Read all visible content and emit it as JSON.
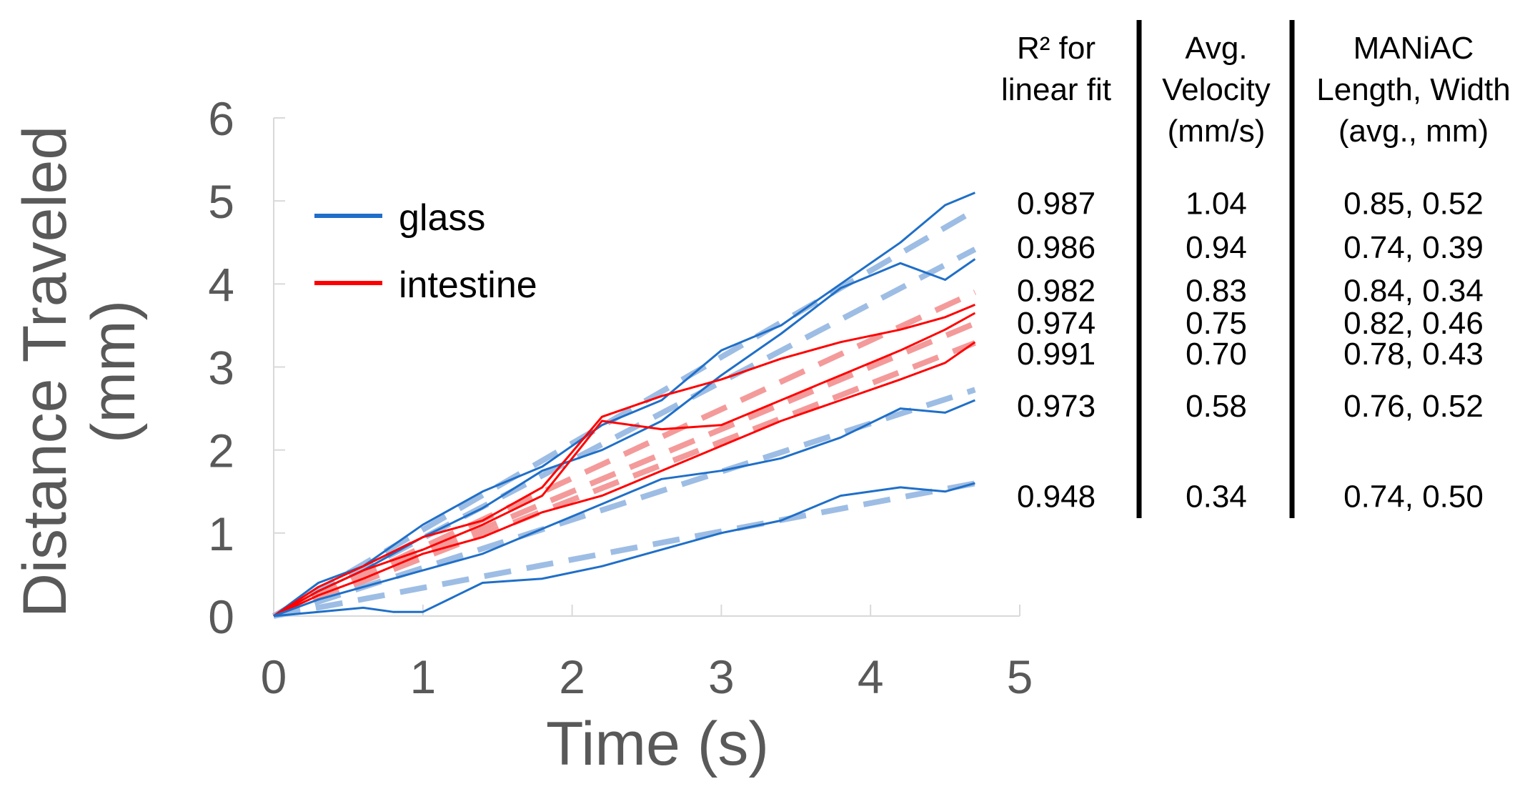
{
  "chart_data": {
    "type": "line",
    "title": "",
    "xlabel": "Time (s)",
    "ylabel_line1": "Distance Traveled",
    "ylabel_line2": "(mm)",
    "xlim": [
      0,
      5
    ],
    "ylim": [
      0,
      6
    ],
    "xticks": [
      0,
      1,
      2,
      3,
      4,
      5
    ],
    "yticks": [
      0,
      1,
      2,
      3,
      4,
      5,
      6
    ],
    "grid": false,
    "legend": {
      "position": "upper-left",
      "items": [
        {
          "label": "glass",
          "color": "#1f6fc8"
        },
        {
          "label": "intestine",
          "color": "#ff0000"
        }
      ]
    },
    "series": [
      {
        "name": "glass",
        "substrate": "glass",
        "velocity": 1.04,
        "r2": 0.987,
        "points": [
          [
            0,
            0
          ],
          [
            0.3,
            0.4
          ],
          [
            0.6,
            0.6
          ],
          [
            1.0,
            1.1
          ],
          [
            1.4,
            1.5
          ],
          [
            1.8,
            1.8
          ],
          [
            2.2,
            2.3
          ],
          [
            2.6,
            2.6
          ],
          [
            3.0,
            3.2
          ],
          [
            3.4,
            3.5
          ],
          [
            3.8,
            4.0
          ],
          [
            4.2,
            4.5
          ],
          [
            4.5,
            4.95
          ],
          [
            4.7,
            5.1
          ]
        ]
      },
      {
        "name": "glass",
        "substrate": "glass",
        "velocity": 0.94,
        "r2": 0.986,
        "points": [
          [
            0,
            0
          ],
          [
            0.3,
            0.3
          ],
          [
            0.6,
            0.55
          ],
          [
            1.0,
            0.95
          ],
          [
            1.4,
            1.3
          ],
          [
            1.8,
            1.75
          ],
          [
            2.2,
            2.0
          ],
          [
            2.6,
            2.35
          ],
          [
            3.0,
            2.9
          ],
          [
            3.4,
            3.4
          ],
          [
            3.8,
            3.95
          ],
          [
            4.2,
            4.25
          ],
          [
            4.5,
            4.05
          ],
          [
            4.7,
            4.3
          ]
        ]
      },
      {
        "name": "intestine",
        "substrate": "intestine",
        "velocity": 0.83,
        "r2": 0.982,
        "points": [
          [
            0,
            0
          ],
          [
            0.3,
            0.35
          ],
          [
            0.6,
            0.6
          ],
          [
            1.0,
            0.95
          ],
          [
            1.4,
            1.15
          ],
          [
            1.8,
            1.55
          ],
          [
            2.2,
            2.4
          ],
          [
            2.6,
            2.65
          ],
          [
            3.0,
            2.85
          ],
          [
            3.4,
            3.1
          ],
          [
            3.8,
            3.3
          ],
          [
            4.2,
            3.45
          ],
          [
            4.5,
            3.6
          ],
          [
            4.7,
            3.75
          ]
        ]
      },
      {
        "name": "intestine",
        "substrate": "intestine",
        "velocity": 0.75,
        "r2": 0.974,
        "points": [
          [
            0,
            0
          ],
          [
            0.3,
            0.3
          ],
          [
            0.6,
            0.55
          ],
          [
            1.0,
            0.8
          ],
          [
            1.4,
            1.1
          ],
          [
            1.8,
            1.45
          ],
          [
            2.2,
            2.35
          ],
          [
            2.6,
            2.25
          ],
          [
            3.0,
            2.3
          ],
          [
            3.4,
            2.6
          ],
          [
            3.8,
            2.9
          ],
          [
            4.2,
            3.2
          ],
          [
            4.5,
            3.45
          ],
          [
            4.7,
            3.65
          ]
        ]
      },
      {
        "name": "intestine",
        "substrate": "intestine",
        "velocity": 0.7,
        "r2": 0.991,
        "points": [
          [
            0,
            0
          ],
          [
            0.3,
            0.25
          ],
          [
            0.6,
            0.45
          ],
          [
            1.0,
            0.75
          ],
          [
            1.4,
            0.95
          ],
          [
            1.8,
            1.25
          ],
          [
            2.2,
            1.45
          ],
          [
            2.6,
            1.75
          ],
          [
            3.0,
            2.05
          ],
          [
            3.4,
            2.35
          ],
          [
            3.8,
            2.6
          ],
          [
            4.2,
            2.85
          ],
          [
            4.5,
            3.05
          ],
          [
            4.7,
            3.3
          ]
        ]
      },
      {
        "name": "glass",
        "substrate": "glass",
        "velocity": 0.58,
        "r2": 0.973,
        "points": [
          [
            0,
            0
          ],
          [
            0.3,
            0.2
          ],
          [
            0.6,
            0.35
          ],
          [
            1.0,
            0.55
          ],
          [
            1.4,
            0.75
          ],
          [
            1.8,
            1.05
          ],
          [
            2.2,
            1.35
          ],
          [
            2.6,
            1.65
          ],
          [
            3.0,
            1.75
          ],
          [
            3.4,
            1.9
          ],
          [
            3.8,
            2.15
          ],
          [
            4.2,
            2.5
          ],
          [
            4.5,
            2.45
          ],
          [
            4.7,
            2.6
          ]
        ]
      },
      {
        "name": "glass",
        "substrate": "glass",
        "velocity": 0.34,
        "r2": 0.948,
        "points": [
          [
            0,
            0
          ],
          [
            0.3,
            0.05
          ],
          [
            0.6,
            0.1
          ],
          [
            0.8,
            0.05
          ],
          [
            1.0,
            0.05
          ],
          [
            1.4,
            0.4
          ],
          [
            1.8,
            0.45
          ],
          [
            2.2,
            0.6
          ],
          [
            2.6,
            0.8
          ],
          [
            3.0,
            1.0
          ],
          [
            3.4,
            1.15
          ],
          [
            3.8,
            1.45
          ],
          [
            4.2,
            1.55
          ],
          [
            4.5,
            1.5
          ],
          [
            4.7,
            1.6
          ]
        ]
      }
    ],
    "table": {
      "headers": [
        [
          "R² for",
          "linear fit"
        ],
        [
          "Avg.",
          "Velocity",
          "(mm/s)"
        ],
        [
          "MANiAC",
          "Length, Width",
          "(avg., mm)"
        ]
      ],
      "rows": [
        {
          "r2": "0.987",
          "velocity": "1.04",
          "size": "0.85, 0.52",
          "row_y": 4.98
        },
        {
          "r2": "0.986",
          "velocity": "0.94",
          "size": "0.74, 0.39",
          "row_y": 4.45
        },
        {
          "r2": "0.982",
          "velocity": "0.83",
          "size": "0.84, 0.34",
          "row_y": 3.93
        },
        {
          "r2": "0.974",
          "velocity": "0.75",
          "size": "0.82, 0.46",
          "row_y": 3.54
        },
        {
          "r2": "0.991",
          "velocity": "0.70",
          "size": "0.78, 0.43",
          "row_y": 3.17
        },
        {
          "r2": "0.973",
          "velocity": "0.58",
          "size": "0.76, 0.52",
          "row_y": 2.54
        },
        {
          "r2": "0.948",
          "velocity": "0.34",
          "size": "0.74, 0.50",
          "row_y": 1.45
        }
      ]
    }
  },
  "colors": {
    "glass": "#1f6fc8",
    "glass_fit": "#9dbde4",
    "intestine": "#ff0000",
    "intestine_fit": "#f49a9a",
    "axis": "#d9d9d9",
    "text_gray": "#595959"
  }
}
